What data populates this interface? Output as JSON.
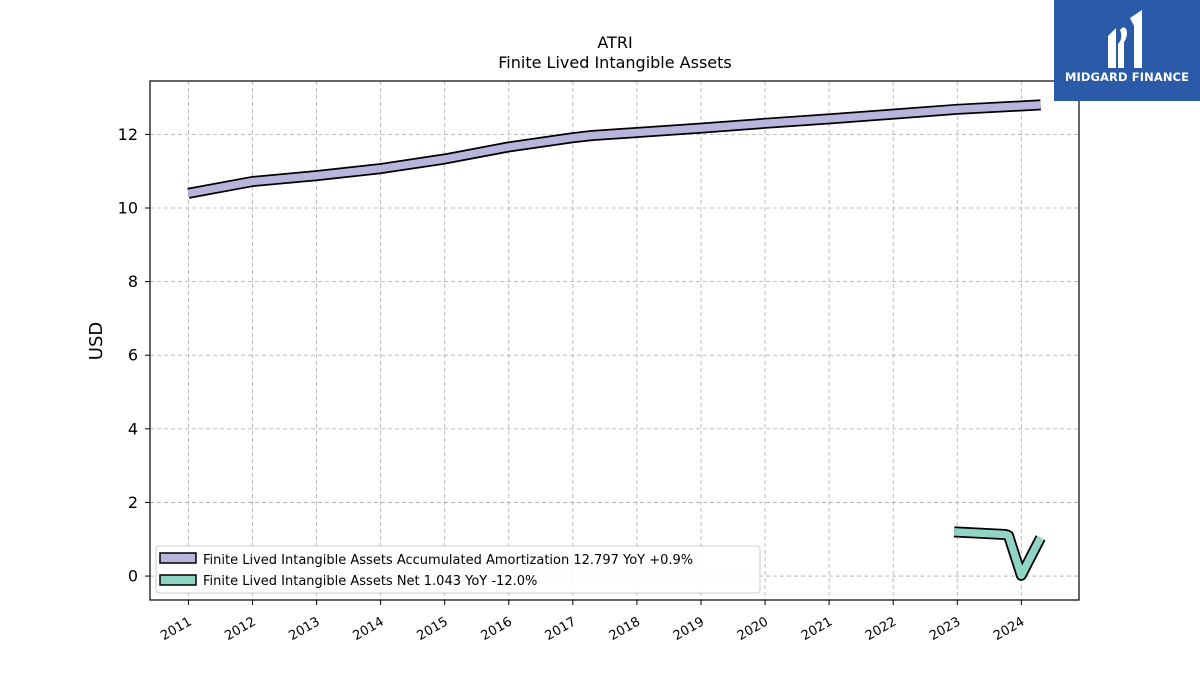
{
  "brand": {
    "name": "MIDGARD FINANCE",
    "colors": {
      "background": "#2a5aa8",
      "text": "#ffffff"
    }
  },
  "chart_data": {
    "type": "line",
    "title": "ATRI",
    "subtitle": "Finite Lived Intangible Assets",
    "ylabel": "USD",
    "xlabel": "",
    "x_ticks": [
      "2011",
      "2012",
      "2013",
      "2014",
      "2015",
      "2016",
      "2017",
      "2018",
      "2019",
      "2020",
      "2021",
      "2022",
      "2023",
      "2024"
    ],
    "y_ticks": [
      0,
      2,
      4,
      6,
      8,
      10,
      12
    ],
    "xlim": [
      2010.4,
      2024.9
    ],
    "ylim": [
      -0.65,
      13.45
    ],
    "grid": true,
    "legend_position": "lower-left",
    "series": [
      {
        "name": "Finite Lived Intangible Assets Accumulated Amortization  12.797 YoY +0.9%",
        "color": "#b8b5dc",
        "points": [
          [
            2011.0,
            10.4
          ],
          [
            2012.0,
            10.72
          ],
          [
            2013.0,
            10.88
          ],
          [
            2014.0,
            11.07
          ],
          [
            2015.0,
            11.33
          ],
          [
            2016.0,
            11.66
          ],
          [
            2017.0,
            11.91
          ],
          [
            2017.3,
            11.97
          ],
          [
            2018.0,
            12.05
          ],
          [
            2019.0,
            12.17
          ],
          [
            2020.0,
            12.3
          ],
          [
            2021.0,
            12.42
          ],
          [
            2022.0,
            12.55
          ],
          [
            2023.0,
            12.68
          ],
          [
            2024.3,
            12.8
          ]
        ]
      },
      {
        "name": "Finite Lived Intangible Assets Net  1.043 YoY -12.0%",
        "color": "#8fd4c4",
        "points": [
          [
            2022.95,
            1.2
          ],
          [
            2023.75,
            1.13
          ],
          [
            2023.8,
            1.1
          ],
          [
            2024.0,
            0.02
          ],
          [
            2024.3,
            1.04
          ]
        ]
      }
    ]
  }
}
